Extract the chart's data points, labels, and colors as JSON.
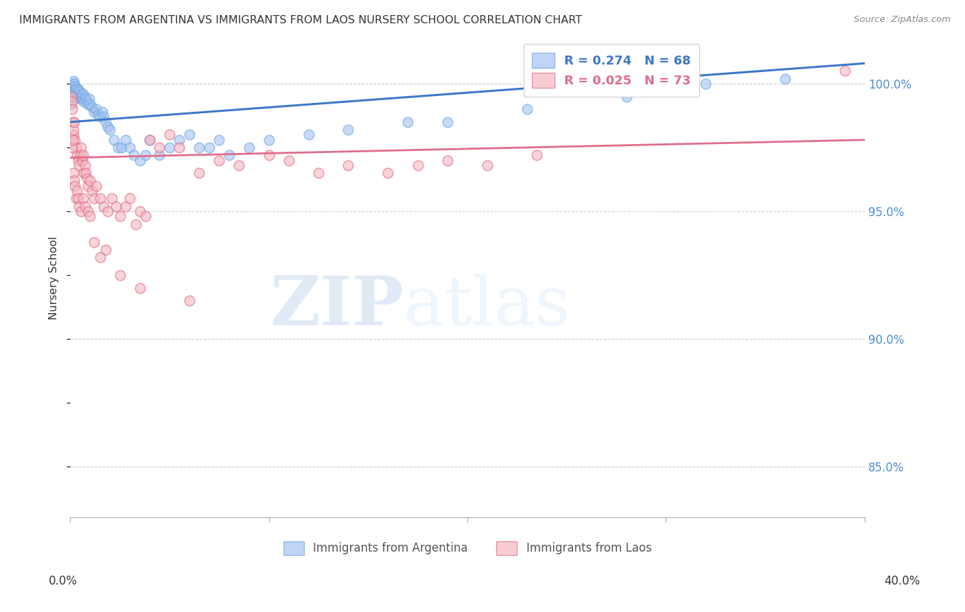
{
  "title": "IMMIGRANTS FROM ARGENTINA VS IMMIGRANTS FROM LAOS NURSERY SCHOOL CORRELATION CHART",
  "source": "Source: ZipAtlas.com",
  "ylabel": "Nursery School",
  "xlim": [
    0.0,
    40.0
  ],
  "ylim": [
    83.0,
    101.8
  ],
  "yticks": [
    85.0,
    90.0,
    95.0,
    100.0
  ],
  "ytick_labels": [
    "85.0%",
    "90.0%",
    "95.0%",
    "100.0%"
  ],
  "argentina_color": "#a4c2f4",
  "laos_color": "#f4b8c1",
  "argentina_edge_color": "#6fa8dc",
  "laos_edge_color": "#e06c8a",
  "argentina_line_color": "#3d78c9",
  "laos_line_color": "#e06c8a",
  "argentina_R": 0.274,
  "argentina_N": 68,
  "laos_R": 0.025,
  "laos_N": 73,
  "watermark_zip": "ZIP",
  "watermark_atlas": "atlas",
  "argentina_x": [
    0.05,
    0.08,
    0.1,
    0.12,
    0.15,
    0.18,
    0.2,
    0.22,
    0.25,
    0.28,
    0.3,
    0.32,
    0.35,
    0.38,
    0.4,
    0.42,
    0.45,
    0.48,
    0.5,
    0.52,
    0.55,
    0.58,
    0.6,
    0.65,
    0.7,
    0.75,
    0.8,
    0.85,
    0.9,
    0.95,
    1.0,
    1.1,
    1.2,
    1.3,
    1.4,
    1.5,
    1.6,
    1.7,
    1.8,
    1.9,
    2.0,
    2.2,
    2.4,
    2.6,
    2.8,
    3.0,
    3.2,
    3.5,
    3.8,
    4.0,
    4.5,
    5.0,
    5.5,
    6.0,
    6.5,
    7.0,
    7.5,
    8.0,
    9.0,
    10.0,
    12.0,
    14.0,
    17.0,
    19.0,
    23.0,
    28.0,
    32.0,
    36.0
  ],
  "argentina_y": [
    99.2,
    99.5,
    99.8,
    100.0,
    100.1,
    99.9,
    100.0,
    99.8,
    99.7,
    99.9,
    99.6,
    99.8,
    99.5,
    99.7,
    99.8,
    99.6,
    99.5,
    99.7,
    99.5,
    99.4,
    99.6,
    99.5,
    99.4,
    99.6,
    99.3,
    99.5,
    99.4,
    99.3,
    99.2,
    99.4,
    99.2,
    99.1,
    98.9,
    99.0,
    98.8,
    98.7,
    98.9,
    98.7,
    98.5,
    98.3,
    98.2,
    97.8,
    97.5,
    97.5,
    97.8,
    97.5,
    97.2,
    97.0,
    97.2,
    97.8,
    97.2,
    97.5,
    97.8,
    98.0,
    97.5,
    97.5,
    97.8,
    97.2,
    97.5,
    97.8,
    98.0,
    98.2,
    98.5,
    98.5,
    99.0,
    99.5,
    100.0,
    100.2
  ],
  "laos_x": [
    0.05,
    0.08,
    0.1,
    0.12,
    0.15,
    0.18,
    0.2,
    0.25,
    0.3,
    0.35,
    0.4,
    0.45,
    0.5,
    0.55,
    0.6,
    0.65,
    0.7,
    0.75,
    0.8,
    0.85,
    0.9,
    1.0,
    1.1,
    1.2,
    1.3,
    1.5,
    1.7,
    1.9,
    2.1,
    2.3,
    2.5,
    2.8,
    3.0,
    3.3,
    3.5,
    3.8,
    4.0,
    4.5,
    5.0,
    5.5,
    6.5,
    7.5,
    8.5,
    10.0,
    11.0,
    12.5,
    14.0,
    16.0,
    17.5,
    19.0,
    21.0,
    23.5,
    39.0,
    0.08,
    0.12,
    0.15,
    0.2,
    0.25,
    0.3,
    0.35,
    0.4,
    0.45,
    0.55,
    0.65,
    0.75,
    0.9,
    1.0,
    1.2,
    1.5,
    1.8,
    2.5,
    3.5,
    6.0
  ],
  "laos_y": [
    99.5,
    99.3,
    99.0,
    98.5,
    98.0,
    98.2,
    98.5,
    97.8,
    97.5,
    97.2,
    97.0,
    96.8,
    97.2,
    97.5,
    97.0,
    97.2,
    96.5,
    96.8,
    96.5,
    96.3,
    96.0,
    96.2,
    95.8,
    95.5,
    96.0,
    95.5,
    95.2,
    95.0,
    95.5,
    95.2,
    94.8,
    95.2,
    95.5,
    94.5,
    95.0,
    94.8,
    97.8,
    97.5,
    98.0,
    97.5,
    96.5,
    97.0,
    96.8,
    97.2,
    97.0,
    96.5,
    96.8,
    96.5,
    96.8,
    97.0,
    96.8,
    97.2,
    100.5,
    97.5,
    97.8,
    96.5,
    96.2,
    96.0,
    95.5,
    95.8,
    95.5,
    95.2,
    95.0,
    95.5,
    95.2,
    95.0,
    94.8,
    93.8,
    93.2,
    93.5,
    92.5,
    92.0,
    91.5
  ]
}
